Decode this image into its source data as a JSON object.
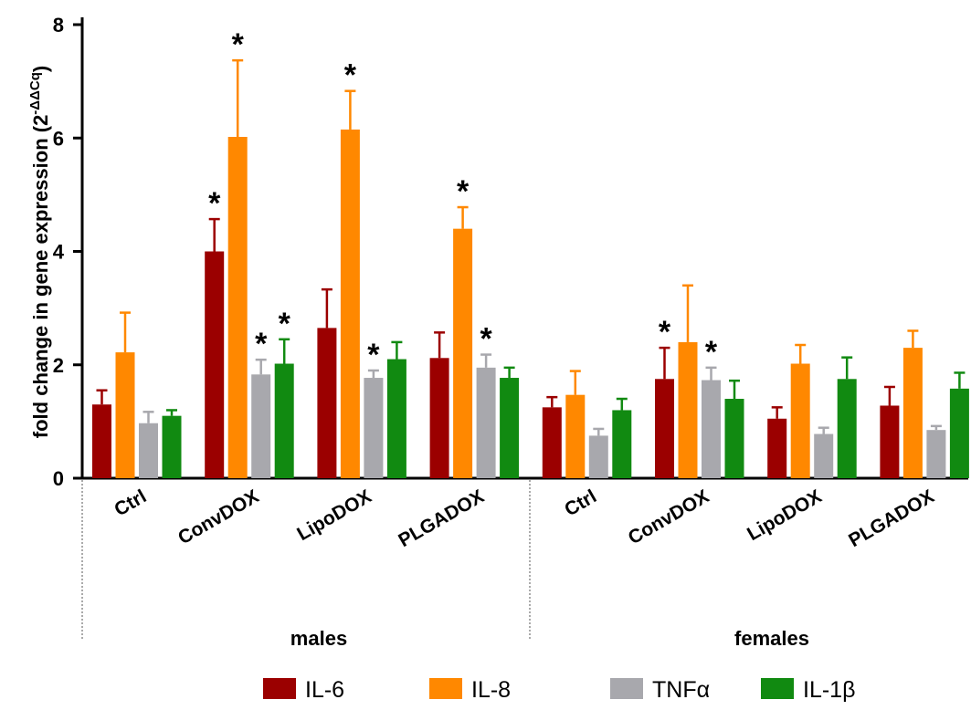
{
  "chart_data": {
    "type": "bar",
    "ylabel": "fold change in gene expression (2",
    "ylabel_superscript": "-ΔΔCq",
    "ylabel_close": ")",
    "ylim": [
      0,
      8
    ],
    "yticks": [
      0,
      2,
      4,
      6,
      8
    ],
    "groups": [
      {
        "name": "males",
        "categories": [
          "Ctrl",
          "ConvDOX",
          "LipoDOX",
          "PLGADOX"
        ]
      },
      {
        "name": "females",
        "categories": [
          "Ctrl",
          "ConvDOX",
          "LipoDOX",
          "PLGADOX"
        ]
      }
    ],
    "categories": [
      "Ctrl",
      "ConvDOX",
      "LipoDOX",
      "PLGADOX",
      "Ctrl",
      "ConvDOX",
      "LipoDOX",
      "PLGADOX"
    ],
    "series": [
      {
        "name": "IL-6",
        "color": "#9b0000",
        "values": [
          1.3,
          4.0,
          2.65,
          2.12,
          1.25,
          1.75,
          1.05,
          1.28
        ],
        "errors": [
          0.25,
          0.57,
          0.68,
          0.45,
          0.18,
          0.55,
          0.2,
          0.33
        ],
        "significant": [
          false,
          true,
          false,
          false,
          false,
          true,
          false,
          false
        ]
      },
      {
        "name": "IL-8",
        "color": "#ff8800",
        "values": [
          2.22,
          6.02,
          6.15,
          4.4,
          1.47,
          2.4,
          2.02,
          2.3
        ],
        "errors": [
          0.7,
          1.35,
          0.68,
          0.38,
          0.42,
          1.0,
          0.33,
          0.3
        ],
        "significant": [
          false,
          true,
          true,
          true,
          false,
          false,
          false,
          false
        ]
      },
      {
        "name": "TNFα",
        "color": "#a8a8ad",
        "values": [
          0.97,
          1.83,
          1.77,
          1.95,
          0.75,
          1.73,
          0.78,
          0.85
        ],
        "errors": [
          0.2,
          0.26,
          0.13,
          0.23,
          0.12,
          0.22,
          0.11,
          0.07
        ],
        "significant": [
          false,
          true,
          true,
          true,
          false,
          true,
          false,
          false
        ]
      },
      {
        "name": "IL-1β",
        "color": "#118a11",
        "values": [
          1.1,
          2.02,
          2.1,
          1.77,
          1.2,
          1.4,
          1.75,
          1.58
        ],
        "errors": [
          0.1,
          0.43,
          0.3,
          0.18,
          0.2,
          0.32,
          0.38,
          0.28
        ],
        "significant": [
          false,
          true,
          false,
          false,
          false,
          false,
          false,
          false
        ]
      }
    ],
    "significance_marker": "*",
    "legend": {
      "position": "bottom",
      "entries": [
        "IL-6",
        "IL-8",
        "TNFα",
        "IL-1β"
      ]
    },
    "grid": false
  }
}
